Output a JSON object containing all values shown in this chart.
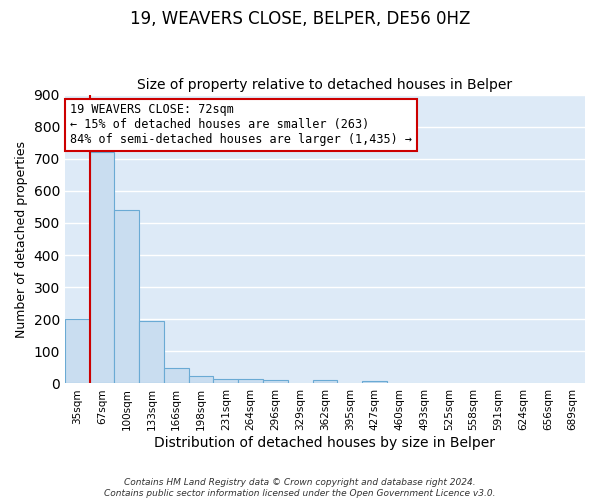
{
  "title": "19, WEAVERS CLOSE, BELPER, DE56 0HZ",
  "subtitle": "Size of property relative to detached houses in Belper",
  "xlabel": "Distribution of detached houses by size in Belper",
  "ylabel": "Number of detached properties",
  "bar_labels": [
    "35sqm",
    "67sqm",
    "100sqm",
    "133sqm",
    "166sqm",
    "198sqm",
    "231sqm",
    "264sqm",
    "296sqm",
    "329sqm",
    "362sqm",
    "395sqm",
    "427sqm",
    "460sqm",
    "493sqm",
    "525sqm",
    "558sqm",
    "591sqm",
    "624sqm",
    "656sqm",
    "689sqm"
  ],
  "bar_values": [
    200,
    720,
    540,
    195,
    47,
    22,
    15,
    15,
    10,
    0,
    10,
    0,
    8,
    0,
    0,
    0,
    0,
    0,
    0,
    0,
    0
  ],
  "bar_color": "#c9ddf0",
  "bar_edge_color": "#6aaad4",
  "property_line_color": "#cc0000",
  "property_line_x": 0.5,
  "ylim": [
    0,
    900
  ],
  "yticks": [
    0,
    100,
    200,
    300,
    400,
    500,
    600,
    700,
    800,
    900
  ],
  "annotation_title": "19 WEAVERS CLOSE: 72sqm",
  "annotation_line1": "← 15% of detached houses are smaller (263)",
  "annotation_line2": "84% of semi-detached houses are larger (1,435) →",
  "annotation_box_color": "#ffffff",
  "annotation_box_edge": "#cc0000",
  "footer_line1": "Contains HM Land Registry data © Crown copyright and database right 2024.",
  "footer_line2": "Contains public sector information licensed under the Open Government Licence v3.0.",
  "background_color": "#ddeaf7",
  "plot_bg_color": "#ddeaf7",
  "grid_color": "#ffffff",
  "title_fontsize": 12,
  "subtitle_fontsize": 10,
  "title_fontweight": "normal"
}
